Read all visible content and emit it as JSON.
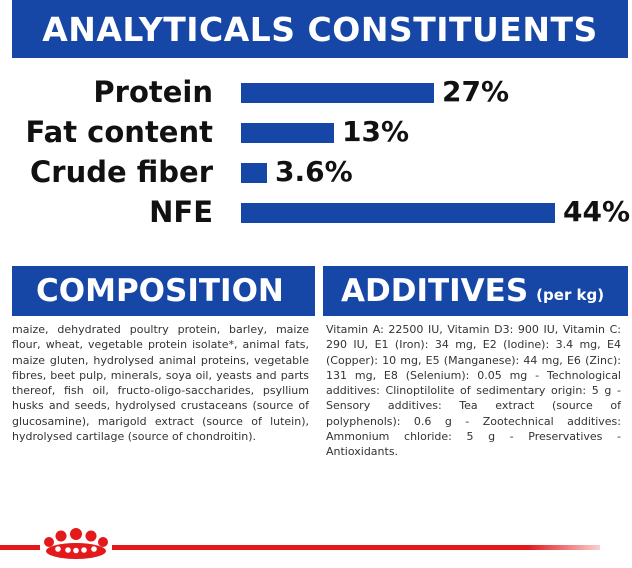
{
  "header": {
    "title": "ANALYTICALS CONSTITUENTS"
  },
  "nutrients": [
    {
      "label": "Protein",
      "value": "27%",
      "fraction": 0.27
    },
    {
      "label": "Fat content",
      "value": "13%",
      "fraction": 0.13
    },
    {
      "label": "Crude fiber",
      "value": "3.6%",
      "fraction": 0.036
    },
    {
      "label": "NFE",
      "value": "44%",
      "fraction": 0.44
    }
  ],
  "composition": {
    "title": "COMPOSITION",
    "text": "maize, dehydrated poultry protein, barley, maize flour, wheat, vegetable protein isolate*, animal fats, maize gluten, hydrolysed animal proteins, vegetable fibres, beet pulp, minerals, soya oil, yeasts and parts thereof, fish oil, fructo-oligo-saccharides, psyllium husks and seeds, hydrolysed crustaceans (source of glucosamine), marigold extract (source of lutein), hydrolysed cartilage (source of chondroitin)."
  },
  "additives": {
    "title": "ADDITIVES",
    "suffix": "(per kg)",
    "text": "Vitamin A: 22500 IU, Vitamin D3: 900 IU, Vitamin C: 290 IU, E1 (Iron): 34 mg, E2 (Iodine): 3.4 mg, E4 (Copper): 10 mg, E5 (Manganese): 44 mg, E6 (Zinc): 131 mg, E8 (Selenium): 0.05 mg - Technological additives: Clinoptilolite of sedimentary origin: 5 g - Sensory additives: Tea extract (source of polyphenols): 0.6 g - Zootechnical additives: Ammonium chloride: 5 g - Preservatives - Antioxidants."
  },
  "footer": {
    "logo_icon": "crown-icon",
    "accent_color": "#e3191b"
  },
  "colors": {
    "brand_blue": "#1747a6"
  }
}
